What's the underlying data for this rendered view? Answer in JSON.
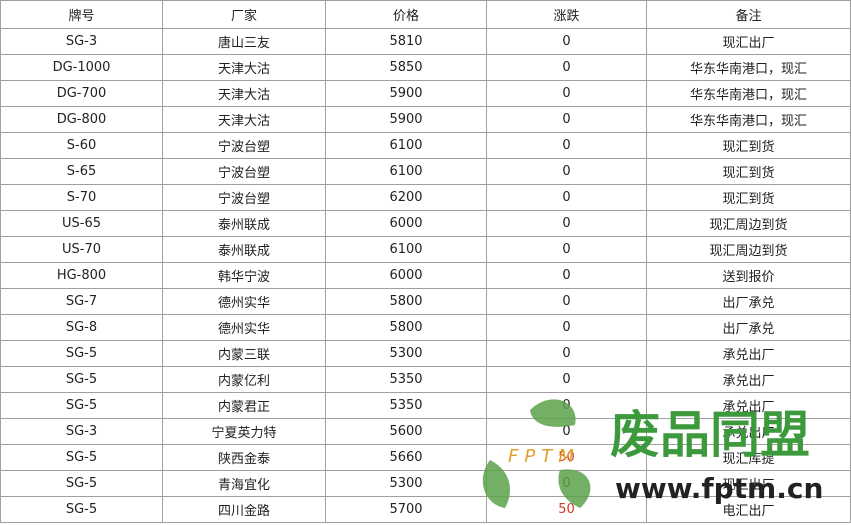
{
  "table": {
    "header": [
      "牌号",
      "厂家",
      "价格",
      "涨跌",
      "备注"
    ],
    "rows": [
      [
        "SG-3",
        "唐山三友",
        "5810",
        "0",
        "现汇出厂"
      ],
      [
        "DG-1000",
        "天津大沽",
        "5850",
        "0",
        "华东华南港口，现汇"
      ],
      [
        "DG-700",
        "天津大沽",
        "5900",
        "0",
        "华东华南港口，现汇"
      ],
      [
        "DG-800",
        "天津大沽",
        "5900",
        "0",
        "华东华南港口，现汇"
      ],
      [
        "S-60",
        "宁波台塑",
        "6100",
        "0",
        "现汇到货"
      ],
      [
        "S-65",
        "宁波台塑",
        "6100",
        "0",
        "现汇到货"
      ],
      [
        "S-70",
        "宁波台塑",
        "6200",
        "0",
        "现汇到货"
      ],
      [
        "US-65",
        "泰州联成",
        "6000",
        "0",
        "现汇周边到货"
      ],
      [
        "US-70",
        "泰州联成",
        "6100",
        "0",
        "现汇周边到货"
      ],
      [
        "HG-800",
        "韩华宁波",
        "6000",
        "0",
        "送到报价"
      ],
      [
        "SG-7",
        "德州实华",
        "5800",
        "0",
        "出厂承兑"
      ],
      [
        "SG-8",
        "德州实华",
        "5800",
        "0",
        "出厂承兑"
      ],
      [
        "SG-5",
        "内蒙三联",
        "5300",
        "0",
        "承兑出厂"
      ],
      [
        "SG-5",
        "内蒙亿利",
        "5350",
        "0",
        "承兑出厂"
      ],
      [
        "SG-5",
        "内蒙君正",
        "5350",
        "0",
        "承兑出厂"
      ],
      [
        "SG-3",
        "宁夏英力特",
        "5600",
        "0",
        "承兑出厂"
      ],
      [
        "SG-5",
        "陕西金泰",
        "5660",
        "50",
        "现汇库提"
      ],
      [
        "SG-5",
        "青海宜化",
        "5300",
        "0",
        "现汇出厂"
      ],
      [
        "SG-5",
        "四川金路",
        "5700",
        "50",
        "电汇出厂"
      ]
    ]
  },
  "watermark": {
    "brand": "废品同盟",
    "abbr": "FPTM",
    "url": "www.fptm.cn"
  }
}
